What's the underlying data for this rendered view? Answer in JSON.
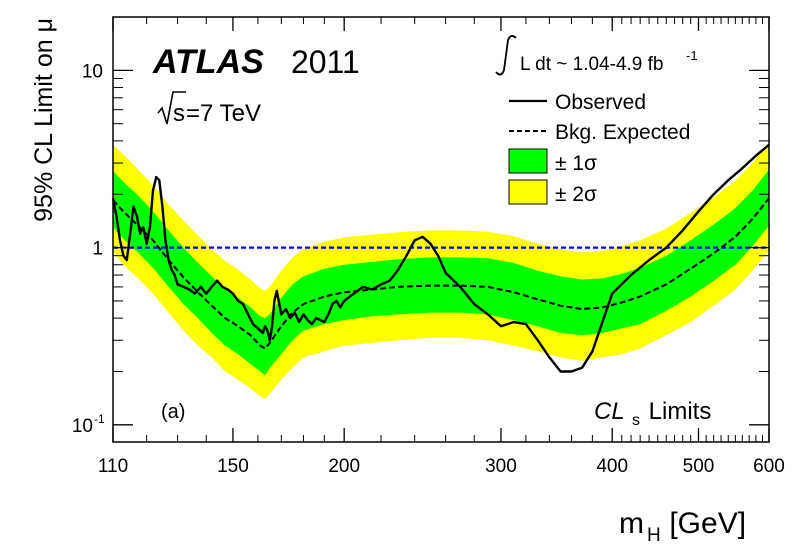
{
  "chart_data": {
    "type": "line",
    "experiment": "ATLAS",
    "year": "2011",
    "energy": "=7 TeV",
    "energy_prefix": "s",
    "luminosity": "L dt ~ 1.04-4.9 fb",
    "luminosity_exp": "-1",
    "panel_label": "(a)",
    "method_label": "CL",
    "method_sub": "s",
    "method_suffix": " Limits",
    "xlabel": "m",
    "xlabel_sub": "H",
    "xlabel_unit": " [GeV]",
    "ylabel": "95% CL Limit on μ",
    "xscale": "log",
    "yscale": "log",
    "xlim": [
      110,
      600
    ],
    "ylim": [
      0.08,
      20
    ],
    "xticks": [
      {
        "value": 110,
        "label": "110"
      },
      {
        "value": 150,
        "label": "150"
      },
      {
        "value": 200,
        "label": "200"
      },
      {
        "value": 300,
        "label": "300"
      },
      {
        "value": 400,
        "label": "400"
      },
      {
        "value": 500,
        "label": "500"
      },
      {
        "value": 600,
        "label": "600"
      }
    ],
    "yticks": [
      {
        "value": 0.1,
        "label": "10",
        "exp": "-1"
      },
      {
        "value": 1,
        "label": "1",
        "exp": ""
      },
      {
        "value": 10,
        "label": "10",
        "exp": ""
      }
    ],
    "reference_line": {
      "value": 1,
      "color": "#0000ff"
    },
    "colors": {
      "observed": "#000000",
      "expected": "#000000",
      "band1": "#00ff00",
      "band2": "#ffff00"
    },
    "legend_position": "top-right",
    "legend": [
      {
        "key": "observed",
        "label": "Observed"
      },
      {
        "key": "expected",
        "label": "Bkg. Expected"
      },
      {
        "key": "band1",
        "label": "± 1σ"
      },
      {
        "key": "band2",
        "label": "± 2σ"
      }
    ],
    "expected": {
      "x": [
        110,
        113,
        117,
        122,
        127,
        132,
        137,
        142,
        147,
        152,
        157,
        161,
        163,
        165,
        170,
        175,
        180,
        190,
        200,
        215,
        230,
        250,
        270,
        290,
        310,
        330,
        350,
        370,
        390,
        410,
        430,
        460,
        490,
        520,
        550,
        575,
        600
      ],
      "y": [
        1.85,
        1.6,
        1.35,
        1.1,
        0.85,
        0.68,
        0.56,
        0.47,
        0.4,
        0.36,
        0.32,
        0.28,
        0.27,
        0.29,
        0.36,
        0.43,
        0.48,
        0.53,
        0.56,
        0.58,
        0.6,
        0.61,
        0.61,
        0.6,
        0.56,
        0.51,
        0.47,
        0.45,
        0.46,
        0.49,
        0.53,
        0.62,
        0.76,
        0.93,
        1.15,
        1.45,
        1.9
      ]
    },
    "band1": {
      "upper": [
        2.7,
        2.35,
        2.0,
        1.6,
        1.25,
        1.0,
        0.82,
        0.69,
        0.59,
        0.52,
        0.46,
        0.41,
        0.4,
        0.42,
        0.52,
        0.62,
        0.69,
        0.76,
        0.8,
        0.83,
        0.86,
        0.88,
        0.88,
        0.87,
        0.82,
        0.74,
        0.69,
        0.66,
        0.67,
        0.71,
        0.77,
        0.9,
        1.1,
        1.35,
        1.67,
        2.1,
        2.75
      ],
      "lower": [
        1.3,
        1.12,
        0.95,
        0.77,
        0.6,
        0.48,
        0.4,
        0.33,
        0.28,
        0.25,
        0.22,
        0.2,
        0.19,
        0.21,
        0.25,
        0.3,
        0.34,
        0.37,
        0.39,
        0.41,
        0.42,
        0.43,
        0.43,
        0.42,
        0.39,
        0.36,
        0.33,
        0.32,
        0.33,
        0.35,
        0.37,
        0.44,
        0.53,
        0.65,
        0.8,
        1.02,
        1.33
      ]
    },
    "band2": {
      "upper": [
        3.8,
        3.35,
        2.8,
        2.25,
        1.75,
        1.42,
        1.17,
        0.98,
        0.84,
        0.75,
        0.66,
        0.59,
        0.57,
        0.6,
        0.74,
        0.88,
        0.98,
        1.08,
        1.14,
        1.18,
        1.22,
        1.25,
        1.25,
        1.23,
        1.16,
        1.05,
        0.98,
        0.94,
        0.96,
        1.02,
        1.1,
        1.28,
        1.57,
        1.92,
        2.38,
        3.0,
        3.9
      ],
      "lower": [
        0.95,
        0.8,
        0.68,
        0.55,
        0.43,
        0.34,
        0.28,
        0.24,
        0.2,
        0.18,
        0.16,
        0.145,
        0.14,
        0.15,
        0.18,
        0.21,
        0.24,
        0.26,
        0.28,
        0.29,
        0.3,
        0.31,
        0.31,
        0.3,
        0.28,
        0.26,
        0.24,
        0.23,
        0.24,
        0.25,
        0.27,
        0.32,
        0.38,
        0.47,
        0.58,
        0.74,
        0.96
      ]
    },
    "observed": {
      "x": [
        110,
        111,
        112,
        113,
        114,
        115,
        116,
        117,
        118,
        119,
        120,
        121,
        122,
        123,
        124,
        125,
        126,
        127,
        128,
        129,
        130,
        132,
        134,
        136,
        138,
        140,
        142,
        144,
        146,
        148,
        150,
        152,
        154,
        156,
        158,
        160,
        162,
        163,
        164,
        165,
        166,
        167,
        168,
        170,
        172,
        174,
        176,
        178,
        180,
        182,
        184,
        186,
        188,
        190,
        192,
        194,
        196,
        198,
        200,
        205,
        210,
        215,
        220,
        225,
        230,
        235,
        240,
        245,
        250,
        255,
        260,
        270,
        280,
        290,
        300,
        310,
        320,
        330,
        340,
        350,
        360,
        370,
        380,
        390,
        400,
        420,
        440,
        460,
        480,
        500,
        520,
        540,
        560,
        580,
        600
      ],
      "y": [
        1.9,
        1.5,
        1.1,
        0.9,
        0.85,
        1.2,
        1.7,
        1.5,
        1.2,
        1.3,
        1.05,
        1.3,
        2.1,
        2.5,
        2.4,
        1.7,
        1.1,
        0.85,
        0.75,
        0.7,
        0.62,
        0.6,
        0.58,
        0.55,
        0.6,
        0.55,
        0.6,
        0.65,
        0.6,
        0.58,
        0.55,
        0.5,
        0.48,
        0.42,
        0.37,
        0.35,
        0.33,
        0.36,
        0.34,
        0.3,
        0.36,
        0.5,
        0.57,
        0.42,
        0.45,
        0.4,
        0.43,
        0.38,
        0.42,
        0.39,
        0.37,
        0.4,
        0.39,
        0.38,
        0.42,
        0.48,
        0.5,
        0.46,
        0.5,
        0.55,
        0.6,
        0.58,
        0.62,
        0.65,
        0.75,
        0.9,
        1.1,
        1.15,
        1.05,
        0.9,
        0.72,
        0.6,
        0.48,
        0.42,
        0.36,
        0.38,
        0.37,
        0.3,
        0.24,
        0.2,
        0.2,
        0.21,
        0.26,
        0.38,
        0.55,
        0.7,
        0.85,
        1.0,
        1.25,
        1.6,
        2.0,
        2.4,
        2.8,
        3.3,
        3.8
      ]
    }
  }
}
